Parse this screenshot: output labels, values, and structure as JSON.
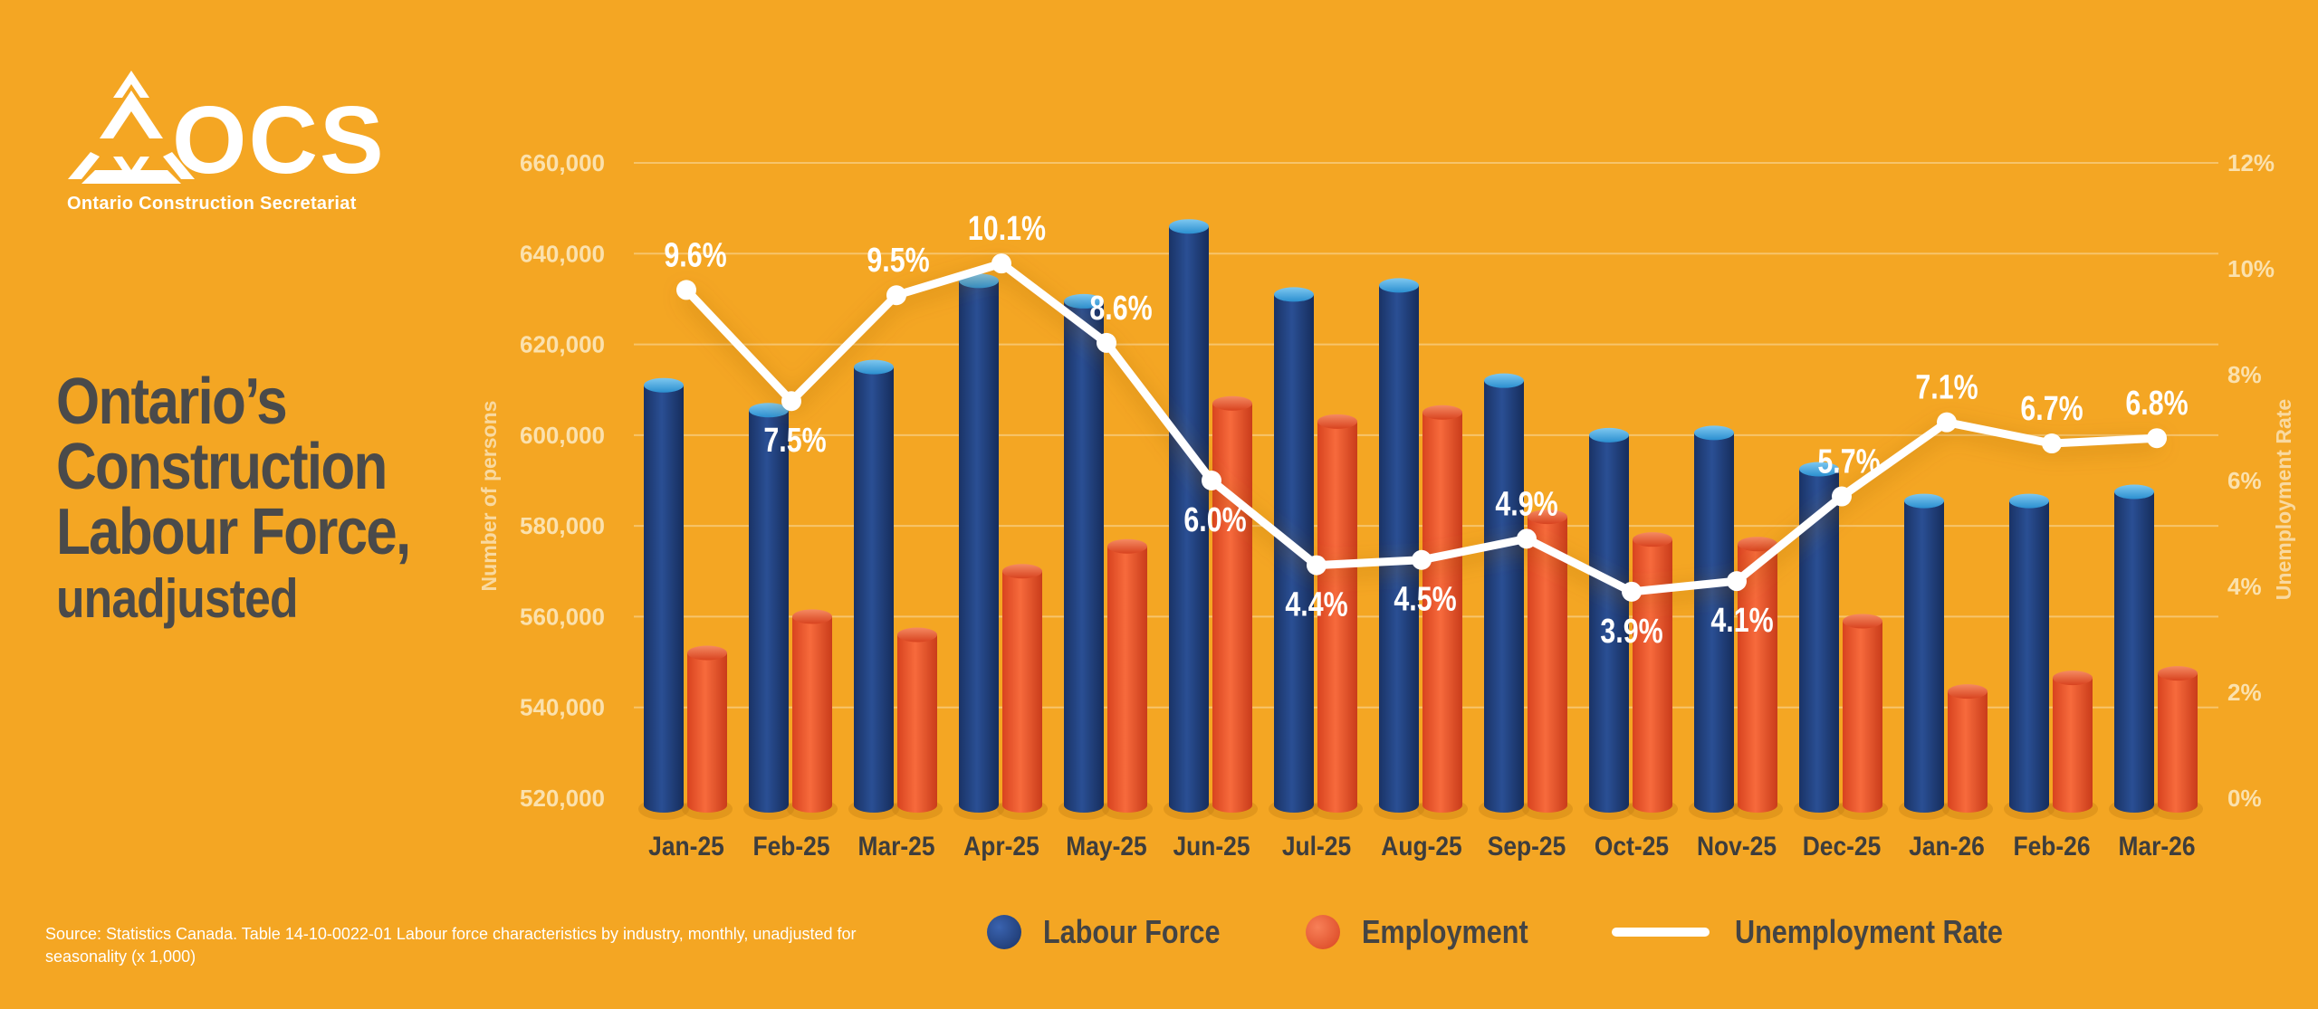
{
  "branding": {
    "logo_text": "OCS",
    "organization": "Ontario Construction Secretariat"
  },
  "title": {
    "line1": "Ontario’s",
    "line2": "Construction",
    "line3": "Labour Force,",
    "line4": "unadjusted"
  },
  "source": "Source: Statistics Canada. Table 14-10-0022-01 Labour force characteristics by industry, monthly, unadjusted for seasonality (x 1,000)",
  "legend": {
    "labour_force": "Labour Force",
    "employment": "Employment",
    "unemployment": "Unemployment Rate"
  },
  "colors": {
    "background": "#F4A623",
    "labour_force": "#1F3E7A",
    "employment": "#E8502A",
    "unemployment": "#FFFFFF"
  },
  "chart_data": {
    "type": "bar",
    "categories": [
      "Jan-25",
      "Feb-25",
      "Mar-25",
      "Apr-25",
      "May-25",
      "Jun-25",
      "Jul-25",
      "Aug-25",
      "Sep-25",
      "Oct-25",
      "Nov-25",
      "Dec-25",
      "Jan-26",
      "Feb-26",
      "Mar-26"
    ],
    "ylabel": "Number of persons",
    "y2label": "Unemployment Rate",
    "ylim": [
      520000,
      660000
    ],
    "yticks": [
      "660,000",
      "640,000",
      "620,000",
      "600,000",
      "580,000",
      "560,000",
      "540,000",
      "520,000"
    ],
    "y2lim": [
      0,
      12
    ],
    "y2ticks": [
      "12%",
      "10%",
      "8%",
      "6%",
      "4%",
      "2%",
      "0%"
    ],
    "series": [
      {
        "name": "Labour Force",
        "type": "bar",
        "values": [
          611000,
          605500,
          615000,
          634000,
          629500,
          646000,
          631000,
          633000,
          612000,
          600000,
          600500,
          592500,
          585500,
          585500,
          587500
        ]
      },
      {
        "name": "Employment",
        "type": "bar",
        "values": [
          552000,
          560000,
          556000,
          570000,
          575500,
          607000,
          603000,
          605000,
          582000,
          577000,
          576000,
          559000,
          543500,
          546500,
          547500
        ]
      },
      {
        "name": "Unemployment Rate",
        "type": "line",
        "axis": "right",
        "values": [
          9.6,
          7.5,
          9.5,
          10.1,
          8.6,
          6.0,
          4.4,
          4.5,
          4.9,
          3.9,
          4.1,
          5.7,
          7.1,
          6.7,
          6.8
        ],
        "labels": [
          "9.6%",
          "7.5%",
          "9.5%",
          "10.1%",
          "8.6%",
          "6.0%",
          "4.4%",
          "4.5%",
          "4.9%",
          "3.9%",
          "4.1%",
          "5.7%",
          "7.1%",
          "6.7%",
          "6.8%"
        ]
      }
    ]
  }
}
